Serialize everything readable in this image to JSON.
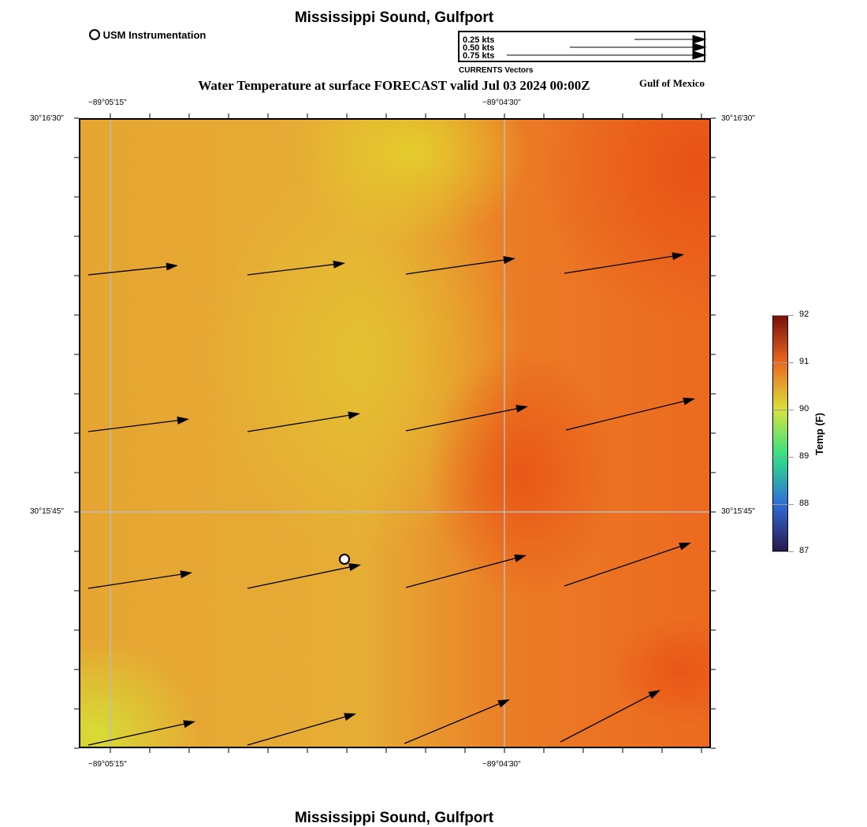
{
  "header": {
    "title": "Mississippi Sound, Gulfport",
    "subtitle": "Water Temperature at surface FORECAST valid Jul 03 2024 00:00Z",
    "region": "Gulf of Mexico",
    "station_legend": "USM Instrumentation"
  },
  "vector_legend": {
    "title": "CURRENTS Vectors",
    "items": [
      "0.25 kts",
      "0.50 kts",
      "0.75 kts"
    ]
  },
  "axes": {
    "lon_ticks": [
      "−89°05'15\"",
      "−89°04'30\""
    ],
    "lat_ticks": [
      "30°16'30\"",
      "30°15'45\""
    ]
  },
  "colorbar": {
    "label": "Temp (F)",
    "ticks": [
      "92",
      "91",
      "90",
      "89",
      "88",
      "87"
    ],
    "min": 87,
    "max": 92,
    "colors": [
      "#2a1850",
      "#2f6fd8",
      "#2ee088",
      "#d8e23a",
      "#ec6a20",
      "#7a0e08"
    ]
  },
  "footer": {
    "title": "Mississippi Sound, Gulfport"
  }
}
